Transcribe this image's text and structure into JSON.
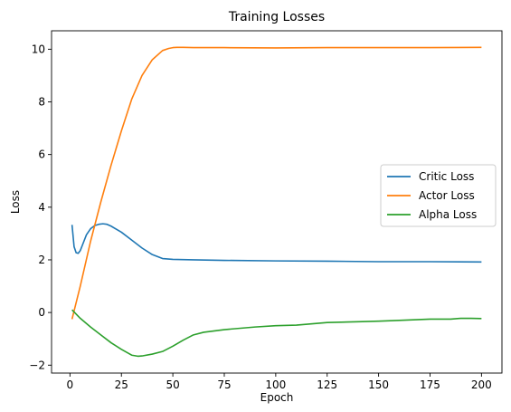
{
  "chart_data": {
    "type": "line",
    "title": "Training Losses",
    "xlabel": "Epoch",
    "ylabel": "Loss",
    "xlim": [
      -8.95,
      209.95
    ],
    "ylim": [
      -2.3,
      10.7
    ],
    "xticks": [
      0,
      25,
      50,
      75,
      100,
      125,
      150,
      175,
      200
    ],
    "yticks": [
      -2,
      0,
      2,
      4,
      6,
      8,
      10
    ],
    "grid": false,
    "legend_position": "center-right",
    "series": [
      {
        "name": "Critic Loss",
        "color": "#1f77b4",
        "x": [
          1,
          2,
          3,
          4,
          5,
          6,
          8,
          10,
          12,
          14,
          16,
          18,
          20,
          25,
          30,
          35,
          40,
          45,
          50,
          60,
          75,
          100,
          125,
          150,
          175,
          200
        ],
        "y": [
          3.33,
          2.5,
          2.27,
          2.25,
          2.35,
          2.55,
          2.95,
          3.18,
          3.3,
          3.35,
          3.37,
          3.35,
          3.28,
          3.05,
          2.75,
          2.45,
          2.2,
          2.05,
          2.02,
          2.0,
          1.98,
          1.96,
          1.95,
          1.93,
          1.93,
          1.92
        ]
      },
      {
        "name": "Actor Loss",
        "color": "#ff7f0e",
        "x": [
          1,
          5,
          10,
          15,
          20,
          25,
          30,
          35,
          40,
          45,
          48,
          50,
          52,
          55,
          60,
          75,
          100,
          125,
          150,
          175,
          200
        ],
        "y": [
          -0.25,
          1.0,
          2.7,
          4.2,
          5.6,
          6.9,
          8.1,
          9.0,
          9.6,
          9.95,
          10.03,
          10.06,
          10.07,
          10.07,
          10.06,
          10.06,
          10.05,
          10.06,
          10.06,
          10.06,
          10.07
        ]
      },
      {
        "name": "Alpha Loss",
        "color": "#2ca02c",
        "x": [
          1,
          5,
          10,
          15,
          20,
          25,
          30,
          33,
          35,
          40,
          45,
          50,
          55,
          60,
          65,
          75,
          90,
          100,
          110,
          125,
          140,
          150,
          160,
          175,
          185,
          190,
          195,
          200
        ],
        "y": [
          0.1,
          -0.22,
          -0.55,
          -0.85,
          -1.15,
          -1.4,
          -1.62,
          -1.66,
          -1.65,
          -1.58,
          -1.48,
          -1.28,
          -1.05,
          -0.85,
          -0.75,
          -0.65,
          -0.55,
          -0.5,
          -0.48,
          -0.38,
          -0.35,
          -0.33,
          -0.3,
          -0.25,
          -0.25,
          -0.22,
          -0.22,
          -0.23
        ]
      }
    ]
  }
}
